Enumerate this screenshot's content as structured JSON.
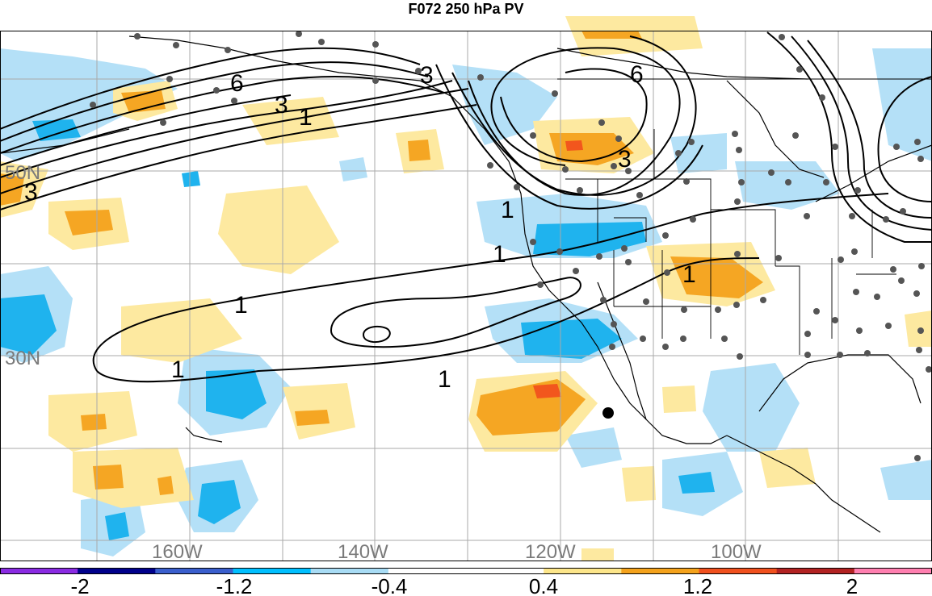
{
  "title": "F072 250 hPa PV",
  "map": {
    "lat_labels": [
      "50N",
      "30N"
    ],
    "lon_labels": [
      "160W",
      "140W",
      "120W",
      "100W"
    ],
    "contour_labels": [
      "1",
      "1",
      "1",
      "1",
      "1",
      "1",
      "1",
      "3",
      "3",
      "3",
      "3",
      "6",
      "6"
    ]
  },
  "colorbar": {
    "labels": [
      "-2",
      "-1.2",
      "-0.4",
      "0.4",
      "1.2",
      "2"
    ],
    "colors": [
      "#8a2be2",
      "#00008b",
      "#3a5fcd",
      "#00bfff",
      "#a8dcf5",
      "#ffffff",
      "#ffffff",
      "#fde68a",
      "#f4a21c",
      "#f0501e",
      "#b22222",
      "#ff7fb0"
    ]
  },
  "legend_colors": {
    "neg_light": "#b4e0f7",
    "neg_mid": "#1fb3ee",
    "pos_light": "#fde9a0",
    "pos_mid": "#f5a623",
    "pos_high": "#f2561d"
  }
}
